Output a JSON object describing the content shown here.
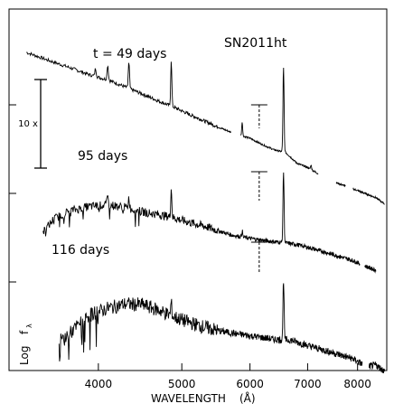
{
  "chart_data": {
    "type": "line",
    "title": "SN2011ht",
    "xlabel_word": "WAVELENGTH",
    "xlabel_unit": "(Å)",
    "ylabel_word": "Log",
    "ylabel_f": "f",
    "ylabel_sub": "λ",
    "x_scale": "log",
    "xlim": [
      3150,
      8650
    ],
    "x_ticks": [
      4000,
      5000,
      6000,
      7000,
      8000
    ],
    "x_tick_labels": [
      "4000",
      "5000",
      "6000",
      "7000",
      "8000"
    ],
    "scale_bar_label": "10 x",
    "grid": false,
    "legend": "none",
    "series": [
      {
        "name": "t = 49 days",
        "x": [
          3300,
          3500,
          3700,
          3900,
          4100,
          4300,
          4500,
          4700,
          4900,
          5100,
          5300,
          5500,
          5700,
          6000,
          6200,
          6400,
          6600,
          6800,
          7000,
          7200,
          7500,
          7800,
          8100,
          8400,
          8600
        ],
        "y": [
          0.0,
          -0.09,
          -0.17,
          -0.25,
          -0.31,
          -0.39,
          -0.47,
          -0.55,
          -0.62,
          -0.7,
          -0.77,
          -0.84,
          -0.9,
          -0.97,
          -1.04,
          -1.1,
          -1.13,
          -1.25,
          -1.3,
          -1.37,
          -1.46,
          -1.52,
          -1.58,
          -1.64,
          -1.71
        ],
        "lines": [
          [
            3970,
            0.09
          ],
          [
            4101,
            0.17
          ],
          [
            4340,
            0.29
          ],
          [
            4861,
            0.52
          ],
          [
            5876,
            0.16
          ],
          [
            6563,
            0.95
          ],
          [
            7065,
            0.05
          ]
        ],
        "gaps": [
          [
            5700,
            5850
          ],
          [
            7200,
            7550
          ],
          [
            7750,
            7900
          ]
        ]
      },
      {
        "name": "95 days",
        "x": [
          3450,
          3550,
          3700,
          3900,
          4100,
          4300,
          4500,
          4700,
          4900,
          5100,
          5300,
          5500,
          5700,
          6000,
          6300,
          6600,
          6800,
          7000,
          7300,
          7600,
          7900,
          8200,
          8400
        ],
        "y": [
          -2.03,
          -1.88,
          -1.79,
          -1.74,
          -1.72,
          -1.75,
          -1.8,
          -1.83,
          -1.87,
          -1.92,
          -1.96,
          -2.01,
          -2.06,
          -2.1,
          -2.13,
          -2.15,
          -2.17,
          -2.2,
          -2.25,
          -2.3,
          -2.35,
          -2.42,
          -2.46
        ],
        "lines": [
          [
            4101,
            0.09
          ],
          [
            4340,
            0.12
          ],
          [
            4861,
            0.33
          ],
          [
            5876,
            0.07
          ],
          [
            6563,
            0.8
          ]
        ],
        "gaps": [
          [
            8050,
            8150
          ]
        ]
      },
      {
        "name": "116 days",
        "x": [
          3600,
          3700,
          3800,
          3900,
          4000,
          4100,
          4300,
          4500,
          4700,
          4900,
          5100,
          5300,
          5500,
          5800,
          6100,
          6400,
          6700,
          7000,
          7300,
          7600,
          7900,
          8200,
          8400,
          8600
        ],
        "y": [
          -3.27,
          -3.18,
          -3.07,
          -2.97,
          -2.93,
          -2.89,
          -2.84,
          -2.85,
          -2.91,
          -2.99,
          -3.05,
          -3.1,
          -3.14,
          -3.18,
          -3.21,
          -3.24,
          -3.25,
          -3.31,
          -3.36,
          -3.41,
          -3.46,
          -3.55,
          -3.53,
          -3.6
        ],
        "lines": [
          [
            4861,
            0.15
          ],
          [
            6563,
            0.68
          ]
        ],
        "gaps": [
          [
            8100,
            8250
          ]
        ]
      }
    ]
  }
}
